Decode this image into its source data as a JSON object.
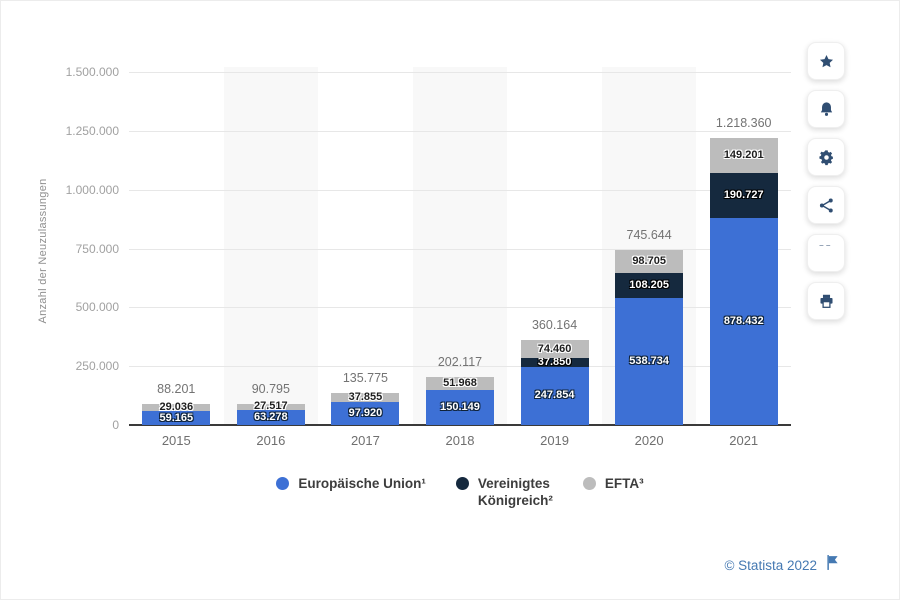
{
  "chart_data": {
    "type": "bar",
    "stacked": true,
    "title": "",
    "xlabel": "",
    "ylabel": "Anzahl der Neuzulassungen",
    "ylim": [
      0,
      1500000
    ],
    "ytick_step": 250000,
    "ytick_labels": [
      "0",
      "250.000",
      "500.000",
      "750.000",
      "1.000.000",
      "1.250.000",
      "1.500.000"
    ],
    "grid": "horizontal",
    "legend_position": "bottom",
    "band_columns": [
      1,
      3,
      5
    ],
    "categories": [
      "2015",
      "2016",
      "2017",
      "2018",
      "2019",
      "2020",
      "2021"
    ],
    "series": [
      {
        "name": "Europäische Union¹",
        "color": "#3d70d5",
        "label_color": "#ffffff",
        "label_outline": "#0f2238",
        "values": [
          59165,
          63278,
          97920,
          150149,
          247854,
          538734,
          878432
        ],
        "labels": [
          "59.165",
          "63.278",
          "97.920",
          "150.149",
          "247.854",
          "538.734",
          "878.432"
        ]
      },
      {
        "name": "Vereinigtes Königreich²",
        "color": "#15293e",
        "label_color": "#ffffff",
        "label_outline": "#000000",
        "values": [
          0,
          0,
          0,
          0,
          37850,
          108205,
          190727
        ],
        "labels": [
          "",
          "",
          "",
          "",
          "37.850",
          "108.205",
          "190.727"
        ]
      },
      {
        "name": "EFTA³",
        "color": "#bcbcbc",
        "label_color": "#1e1e1e",
        "label_outline": "#ffffff",
        "values": [
          29036,
          27517,
          37855,
          51968,
          74460,
          98705,
          149201
        ],
        "labels": [
          "29.036",
          "27.517",
          "37.855",
          "51.968",
          "74.460",
          "98.705",
          "149.201"
        ]
      }
    ],
    "totals": [
      "88.201",
      "90.795",
      "135.775",
      "202.117",
      "360.164",
      "745.644",
      "1.218.360"
    ]
  },
  "legend": {
    "items": [
      {
        "label": "Europäische Union¹",
        "color": "#3d70d5"
      },
      {
        "label": "Vereinigtes\nKönigreich²",
        "color": "#15293e"
      },
      {
        "label": "EFTA³",
        "color": "#bcbcbc"
      }
    ]
  },
  "sidebar": {
    "buttons": [
      {
        "id": "favorite",
        "icon": "star-icon"
      },
      {
        "id": "alerts",
        "icon": "bell-icon"
      },
      {
        "id": "settings",
        "icon": "gear-icon"
      },
      {
        "id": "share",
        "icon": "share-icon"
      },
      {
        "id": "cite",
        "icon": "quote-icon"
      },
      {
        "id": "print",
        "icon": "printer-icon"
      }
    ]
  },
  "footer": {
    "copyright": "© Statista 2022"
  },
  "colors": {
    "band": "#f8f8f8",
    "gridline": "#e7e7e7",
    "axis": "#3a3a3a",
    "link": "#4579b2"
  }
}
